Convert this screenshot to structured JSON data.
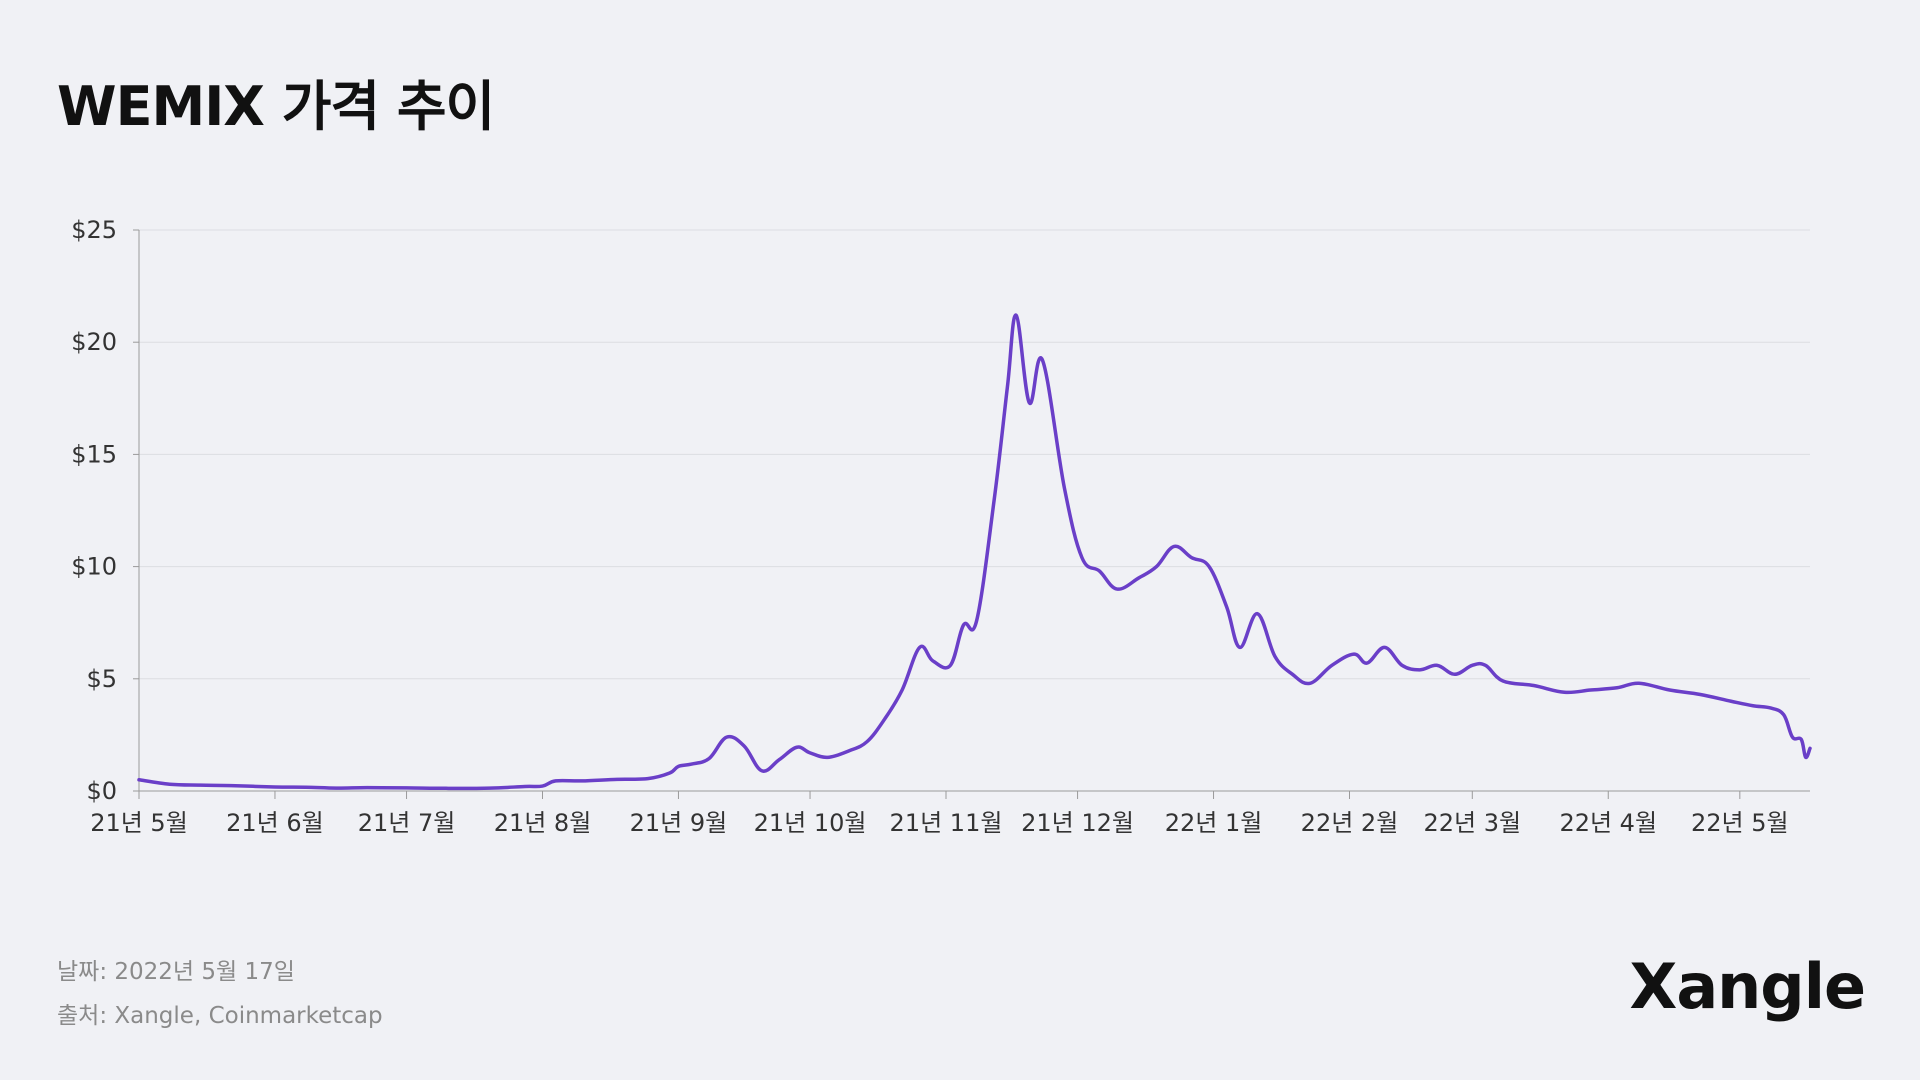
{
  "title": "WEMIX 가격 추이",
  "footer": {
    "date_text": "날짜: 2022년 5월 17일",
    "source_text": "출처: Xangle, Coinmarketcap"
  },
  "brand": "Xangle",
  "colors": {
    "line": "#6a3fc8",
    "grid": "#dcdde2",
    "axis": "#9a9a9a",
    "background": "#f0f1f5"
  },
  "chart_data": {
    "type": "line",
    "title": "WEMIX 가격 추이",
    "xlabel": "",
    "ylabel": "",
    "ylim": [
      0,
      25
    ],
    "yticks": [
      {
        "value": 0,
        "label": "$0"
      },
      {
        "value": 5,
        "label": "$5"
      },
      {
        "value": 10,
        "label": "$10"
      },
      {
        "value": 15,
        "label": "$15"
      },
      {
        "value": 20,
        "label": "$20"
      },
      {
        "value": 25,
        "label": "$25"
      }
    ],
    "xlim": [
      "2021-05-01",
      "2022-05-17"
    ],
    "xticks": [
      {
        "date": "2021-05-01",
        "label": "21년 5월"
      },
      {
        "date": "2021-06-01",
        "label": "21년 6월"
      },
      {
        "date": "2021-07-01",
        "label": "21년 7월"
      },
      {
        "date": "2021-08-01",
        "label": "21년 8월"
      },
      {
        "date": "2021-09-01",
        "label": "21년 9월"
      },
      {
        "date": "2021-10-01",
        "label": "21년 10월"
      },
      {
        "date": "2021-11-01",
        "label": "21년 11월"
      },
      {
        "date": "2021-12-01",
        "label": "21년 12월"
      },
      {
        "date": "2022-01-01",
        "label": "22년 1월"
      },
      {
        "date": "2022-02-01",
        "label": "22년 2월"
      },
      {
        "date": "2022-03-01",
        "label": "22년 3월"
      },
      {
        "date": "2022-04-01",
        "label": "22년 4월"
      },
      {
        "date": "2022-05-01",
        "label": "22년 5월"
      }
    ],
    "grid": true,
    "series": [
      {
        "points": [
          [
            "2021-05-01",
            0.5
          ],
          [
            "2021-05-08",
            0.3
          ],
          [
            "2021-05-15",
            0.26
          ],
          [
            "2021-05-22",
            0.24
          ],
          [
            "2021-06-01",
            0.18
          ],
          [
            "2021-06-08",
            0.17
          ],
          [
            "2021-06-15",
            0.13
          ],
          [
            "2021-06-22",
            0.15
          ],
          [
            "2021-07-01",
            0.14
          ],
          [
            "2021-07-10",
            0.12
          ],
          [
            "2021-07-20",
            0.13
          ],
          [
            "2021-07-28",
            0.2
          ],
          [
            "2021-08-01",
            0.22
          ],
          [
            "2021-08-04",
            0.45
          ],
          [
            "2021-08-10",
            0.45
          ],
          [
            "2021-08-18",
            0.52
          ],
          [
            "2021-08-25",
            0.55
          ],
          [
            "2021-08-30",
            0.8
          ],
          [
            "2021-09-01",
            1.1
          ],
          [
            "2021-09-04",
            1.2
          ],
          [
            "2021-09-08",
            1.45
          ],
          [
            "2021-09-12",
            2.4
          ],
          [
            "2021-09-16",
            2.0
          ],
          [
            "2021-09-20",
            0.9
          ],
          [
            "2021-09-24",
            1.4
          ],
          [
            "2021-09-28",
            1.95
          ],
          [
            "2021-10-01",
            1.7
          ],
          [
            "2021-10-05",
            1.5
          ],
          [
            "2021-10-10",
            1.8
          ],
          [
            "2021-10-14",
            2.2
          ],
          [
            "2021-10-18",
            3.2
          ],
          [
            "2021-10-22",
            4.5
          ],
          [
            "2021-10-26",
            6.4
          ],
          [
            "2021-10-29",
            5.8
          ],
          [
            "2021-11-02",
            5.6
          ],
          [
            "2021-11-05",
            7.4
          ],
          [
            "2021-11-08",
            7.6
          ],
          [
            "2021-11-12",
            13.0
          ],
          [
            "2021-11-15",
            18.0
          ],
          [
            "2021-11-17",
            21.2
          ],
          [
            "2021-11-20",
            17.3
          ],
          [
            "2021-11-23",
            19.2
          ],
          [
            "2021-11-28",
            13.5
          ],
          [
            "2021-12-02",
            10.4
          ],
          [
            "2021-12-06",
            9.8
          ],
          [
            "2021-12-10",
            9.0
          ],
          [
            "2021-12-15",
            9.5
          ],
          [
            "2021-12-19",
            10.0
          ],
          [
            "2021-12-23",
            10.9
          ],
          [
            "2021-12-27",
            10.4
          ],
          [
            "2021-12-31",
            10.0
          ],
          [
            "2022-01-04",
            8.2
          ],
          [
            "2022-01-07",
            6.4
          ],
          [
            "2022-01-11",
            7.9
          ],
          [
            "2022-01-15",
            6.0
          ],
          [
            "2022-01-19",
            5.2
          ],
          [
            "2022-01-23",
            4.8
          ],
          [
            "2022-01-28",
            5.6
          ],
          [
            "2022-02-02",
            6.1
          ],
          [
            "2022-02-05",
            5.7
          ],
          [
            "2022-02-09",
            6.4
          ],
          [
            "2022-02-13",
            5.6
          ],
          [
            "2022-02-17",
            5.4
          ],
          [
            "2022-02-21",
            5.6
          ],
          [
            "2022-02-25",
            5.2
          ],
          [
            "2022-03-01",
            5.6
          ],
          [
            "2022-03-04",
            5.6
          ],
          [
            "2022-03-08",
            4.9
          ],
          [
            "2022-03-15",
            4.7
          ],
          [
            "2022-03-22",
            4.4
          ],
          [
            "2022-03-28",
            4.5
          ],
          [
            "2022-04-03",
            4.6
          ],
          [
            "2022-04-08",
            4.8
          ],
          [
            "2022-04-15",
            4.5
          ],
          [
            "2022-04-22",
            4.3
          ],
          [
            "2022-04-29",
            4.0
          ],
          [
            "2022-05-04",
            3.8
          ],
          [
            "2022-05-08",
            3.7
          ],
          [
            "2022-05-11",
            3.4
          ],
          [
            "2022-05-13",
            2.4
          ],
          [
            "2022-05-15",
            2.3
          ],
          [
            "2022-05-16",
            1.5
          ],
          [
            "2022-05-17",
            1.9
          ]
        ]
      }
    ]
  }
}
